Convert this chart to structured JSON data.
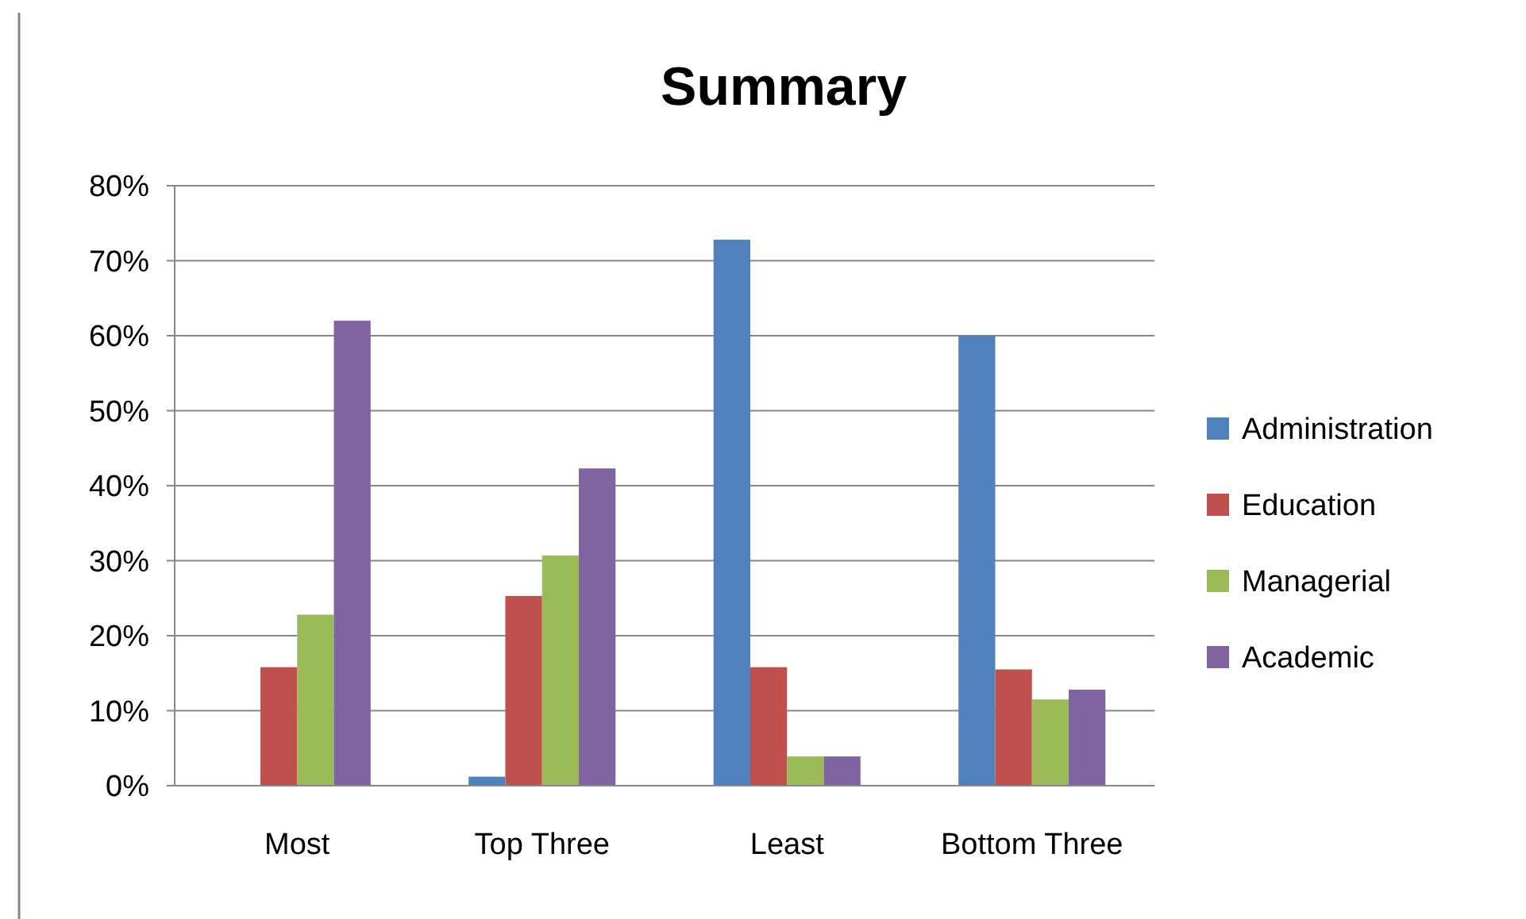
{
  "chart_data": {
    "type": "bar",
    "title": "Summary",
    "categories": [
      "Most",
      "Top Three",
      "Least",
      "Bottom Three"
    ],
    "series": [
      {
        "name": "Administration",
        "color": "#4f81bd",
        "values": [
          0,
          1.2,
          72.8,
          60
        ]
      },
      {
        "name": "Education",
        "color": "#c0504d",
        "values": [
          15.8,
          25.3,
          15.8,
          15.5
        ]
      },
      {
        "name": "Managerial",
        "color": "#9bbb59",
        "values": [
          22.8,
          30.7,
          3.9,
          11.5
        ]
      },
      {
        "name": "Academic",
        "color": "#8064a2",
        "values": [
          62,
          42.3,
          3.9,
          12.8
        ]
      }
    ],
    "ylim": [
      0,
      80
    ],
    "yticks": [
      {
        "value": 0,
        "label": "0%"
      },
      {
        "value": 10,
        "label": "10%"
      },
      {
        "value": 20,
        "label": "20%"
      },
      {
        "value": 30,
        "label": "30%"
      },
      {
        "value": 40,
        "label": "40%"
      },
      {
        "value": 50,
        "label": "50%"
      },
      {
        "value": 60,
        "label": "60%"
      },
      {
        "value": 70,
        "label": "70%"
      },
      {
        "value": 80,
        "label": "80%"
      }
    ],
    "grid": "y",
    "legend": "right"
  }
}
